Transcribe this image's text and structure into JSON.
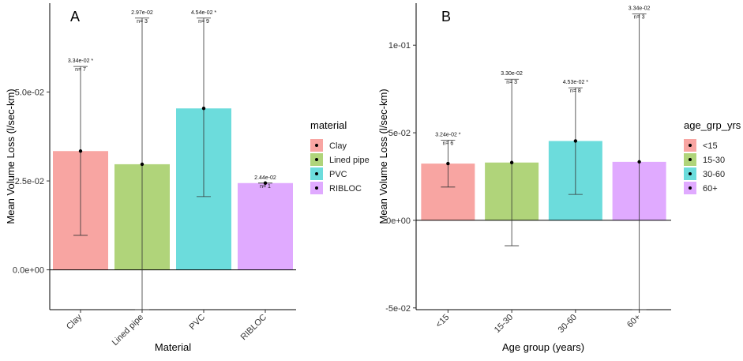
{
  "chart_data": [
    {
      "panel": "A",
      "type": "bar",
      "xlabel": "Material",
      "ylabel": "Mean Volume Loss (l/sec-km)",
      "ylim": [
        -0.0112,
        0.075
      ],
      "yticks": [
        0,
        0.025,
        0.05
      ],
      "ytick_labels": [
        "0.0e+00",
        "2.5e-02",
        "5.0e-02"
      ],
      "categories": [
        "Clay",
        "Lined pipe",
        "PVC",
        "RIBLOC"
      ],
      "values": [
        0.0334,
        0.0297,
        0.0454,
        0.0244
      ],
      "err_low": [
        0.0097,
        -0.0112,
        0.0206,
        0.0244
      ],
      "err_high": [
        0.0572,
        0.0708,
        0.0708,
        0.0244
      ],
      "value_labels": [
        "3.34e-02 *",
        "2.97e-02",
        "4.54e-02 *",
        "2.44e-02"
      ],
      "n_labels": [
        "n= 7",
        "n= 3",
        "n= 9",
        "n= 1"
      ],
      "colors": [
        "#f8a5a2",
        "#b0d47a",
        "#6cdcdc",
        "#e0aaff"
      ],
      "legend_title": "material",
      "legend": [
        "Clay",
        "Lined pipe",
        "PVC",
        "RIBLOC"
      ]
    },
    {
      "panel": "B",
      "type": "bar",
      "xlabel": "Age group (years)",
      "ylabel": "Mean Volume Loss (l/sec-km)",
      "ylim": [
        -0.051,
        0.124
      ],
      "yticks": [
        -0.05,
        0,
        0.05,
        0.1
      ],
      "ytick_labels": [
        "-5e-02",
        "0e+00",
        "5e-02",
        "1e-01"
      ],
      "categories": [
        "<15",
        "15-30",
        "30-60",
        "60+"
      ],
      "values": [
        0.0324,
        0.033,
        0.0453,
        0.0334
      ],
      "err_low": [
        0.019,
        -0.0145,
        0.0148,
        -0.051
      ],
      "err_high": [
        0.0458,
        0.0806,
        0.0757,
        0.1178
      ],
      "value_labels": [
        "3.24e-02 *",
        "3.30e-02",
        "4.53e-02 *",
        "3.34e-02"
      ],
      "n_labels": [
        "n= 6",
        "n= 3",
        "n= 8",
        "n= 3"
      ],
      "colors": [
        "#f8a5a2",
        "#b0d47a",
        "#6cdcdc",
        "#e0aaff"
      ],
      "legend_title": "age_grp_yrs",
      "legend": [
        "<15",
        "15-30",
        "30-60",
        "60+"
      ]
    }
  ]
}
